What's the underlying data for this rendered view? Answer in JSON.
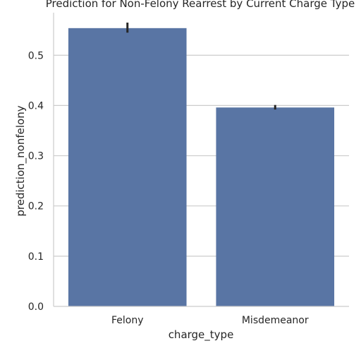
{
  "chart_data": {
    "type": "bar",
    "title": "Prediction for Non-Felony Rearrest by Current Charge Type",
    "xlabel": "charge_type",
    "ylabel": "prediction_nonfelony",
    "categories": [
      "Felony",
      "Misdemeanor"
    ],
    "values": [
      0.554,
      0.396
    ],
    "error_bars": [
      [
        0.545,
        0.565
      ],
      [
        0.392,
        0.401
      ]
    ],
    "ylim": [
      0,
      0.61
    ],
    "yticks": [
      0.0,
      0.1,
      0.2,
      0.3,
      0.4,
      0.5
    ],
    "ytick_labels": [
      "0.0",
      "0.1",
      "0.2",
      "0.3",
      "0.4",
      "0.5"
    ],
    "grid": "horizontal",
    "colors": {
      "bar": "#5975a4",
      "error_bar": "#262626",
      "grid": "#cccccc",
      "axis": "#cccccc"
    }
  }
}
